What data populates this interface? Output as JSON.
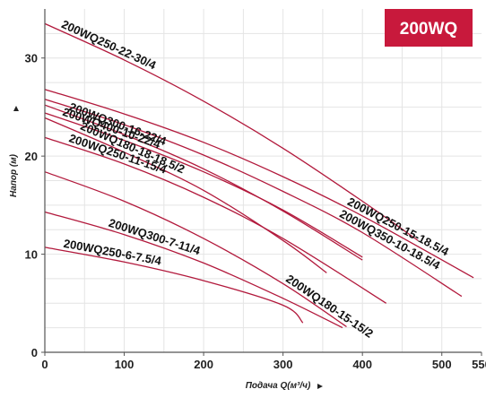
{
  "badge": {
    "text": "200WQ",
    "color": "#c8193c"
  },
  "chart_data": {
    "type": "line",
    "title": "",
    "xlabel": "Подача Q(м³/ч)",
    "ylabel": "Напор (м)",
    "xlim": [
      0,
      550
    ],
    "ylim": [
      0,
      35
    ],
    "xticks": [
      0,
      100,
      200,
      300,
      400,
      500,
      550
    ],
    "yticks": [
      0,
      10,
      20,
      30
    ],
    "grid": true,
    "curve_color": "#b2193c",
    "series": [
      {
        "name": "200WQ250-22-30/4",
        "x": [
          0,
          100,
          200,
          300,
          400,
          470
        ],
        "y": [
          33.5,
          29.8,
          25.6,
          20.8,
          15.4,
          11.4
        ]
      },
      {
        "name": "200WQ250-15-18.5/4",
        "x": [
          0,
          100,
          200,
          300,
          400,
          540
        ],
        "y": [
          26.8,
          24.3,
          21.4,
          17.9,
          13.9,
          7.6
        ]
      },
      {
        "name": "200WQ350-10-18.5/4",
        "x": [
          0,
          100,
          200,
          300,
          400,
          525
        ],
        "y": [
          25.8,
          23.2,
          20.1,
          16.4,
          12.2,
          5.7
        ]
      },
      {
        "name": "200WQ300-16-22/4",
        "x": [
          0,
          100,
          200,
          300,
          400
        ],
        "y": [
          25.2,
          22.2,
          18.7,
          14.4,
          9.4
        ]
      },
      {
        "name": "200WQ400-10-22/4",
        "x": [
          0,
          100,
          200,
          300,
          400
        ],
        "y": [
          24.4,
          21.6,
          18.4,
          14.5,
          9.7
        ]
      },
      {
        "name": "200WQ180-18-18.5/2",
        "x": [
          0,
          100,
          200,
          300,
          355
        ],
        "y": [
          23.9,
          20.4,
          16.5,
          11.4,
          8.1
        ]
      },
      {
        "name": "200WQ250-11-15/4",
        "x": [
          0,
          100,
          200,
          300,
          430
        ],
        "y": [
          21.9,
          19.2,
          15.8,
          11.6,
          5.0
        ]
      },
      {
        "name": "200WQ180-15-15/2",
        "x": [
          0,
          100,
          200,
          300,
          380
        ],
        "y": [
          18.4,
          15.4,
          11.6,
          7.0,
          2.6
        ]
      },
      {
        "name": "200WQ300-7-11/4",
        "x": [
          0,
          100,
          200,
          300,
          375
        ],
        "y": [
          14.3,
          12.0,
          9.1,
          5.5,
          2.5
        ]
      },
      {
        "name": "200WQ250-6-7.5/4",
        "x": [
          0,
          100,
          200,
          300,
          325
        ],
        "y": [
          10.7,
          9.2,
          7.3,
          4.8,
          3.0
        ]
      }
    ]
  }
}
